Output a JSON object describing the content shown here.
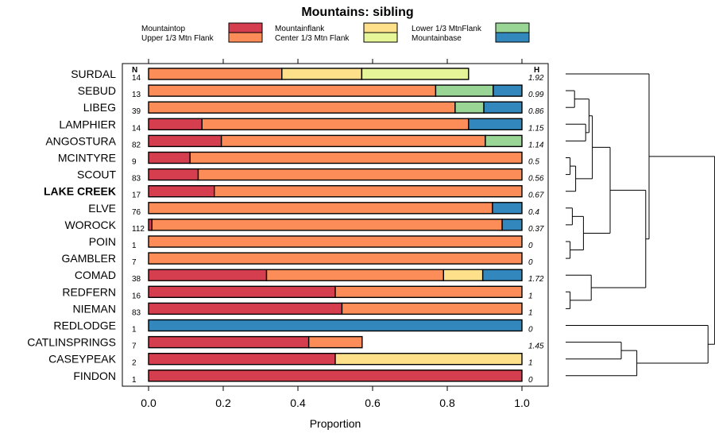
{
  "chart_data": {
    "type": "bar",
    "stacked": true,
    "orientation": "horizontal",
    "title": "Mountains: sibling",
    "xlabel": "Proportion",
    "xlim": [
      0,
      1
    ],
    "xticks": [
      "0.0",
      "0.2",
      "0.4",
      "0.6",
      "0.8",
      "1.0"
    ],
    "n_header": "N",
    "h_header": "H",
    "series": [
      {
        "name": "Mountaintop",
        "color": "#d53e4f"
      },
      {
        "name": "Upper 1/3 Mtn Flank",
        "color": "#fc8d59"
      },
      {
        "name": "Mountainflank",
        "color": "#fee08b"
      },
      {
        "name": "Center 1/3 Mtn Flank",
        "color": "#e6f598"
      },
      {
        "name": "Lower 1/3 MtnFlank",
        "color": "#99d594"
      },
      {
        "name": "Mountainbase",
        "color": "#3288bd"
      }
    ],
    "rows": [
      {
        "label": "SURDAL",
        "bold": false,
        "n": "14",
        "h": "1.92",
        "values": [
          0,
          0.357,
          0.214,
          0.286,
          0,
          0
        ]
      },
      {
        "label": "SEBUD",
        "bold": false,
        "n": "13",
        "h": "0.99",
        "values": [
          0,
          0.769,
          0,
          0,
          0.154,
          0.077
        ]
      },
      {
        "label": "LIBEG",
        "bold": false,
        "n": "39",
        "h": "0.86",
        "values": [
          0,
          0.821,
          0,
          0,
          0.077,
          0.102
        ]
      },
      {
        "label": "LAMPHIER",
        "bold": false,
        "n": "14",
        "h": "1.15",
        "values": [
          0.143,
          0.714,
          0,
          0,
          0,
          0.143
        ]
      },
      {
        "label": "ANGOSTURA",
        "bold": false,
        "n": "82",
        "h": "1.14",
        "values": [
          0.195,
          0.707,
          0,
          0,
          0.098,
          0
        ]
      },
      {
        "label": "MCINTYRE",
        "bold": false,
        "n": "9",
        "h": "0.5",
        "values": [
          0.111,
          0.889,
          0,
          0,
          0,
          0
        ]
      },
      {
        "label": "SCOUT",
        "bold": false,
        "n": "83",
        "h": "0.56",
        "values": [
          0.133,
          0.867,
          0,
          0,
          0,
          0
        ]
      },
      {
        "label": "LAKE CREEK",
        "bold": true,
        "n": "17",
        "h": "0.67",
        "values": [
          0.176,
          0.824,
          0,
          0,
          0,
          0
        ]
      },
      {
        "label": "ELVE",
        "bold": false,
        "n": "76",
        "h": "0.4",
        "values": [
          0,
          0.921,
          0,
          0,
          0,
          0.079
        ]
      },
      {
        "label": "WOROCK",
        "bold": false,
        "n": "112",
        "h": "0.37",
        "values": [
          0.009,
          0.938,
          0,
          0,
          0,
          0.053
        ]
      },
      {
        "label": "POIN",
        "bold": false,
        "n": "1",
        "h": "0",
        "values": [
          0,
          1,
          0,
          0,
          0,
          0
        ]
      },
      {
        "label": "GAMBLER",
        "bold": false,
        "n": "7",
        "h": "0",
        "values": [
          0,
          1,
          0,
          0,
          0,
          0
        ]
      },
      {
        "label": "COMAD",
        "bold": false,
        "n": "38",
        "h": "1.72",
        "values": [
          0.316,
          0.474,
          0.105,
          0,
          0,
          0.105
        ]
      },
      {
        "label": "REDFERN",
        "bold": false,
        "n": "16",
        "h": "1",
        "values": [
          0.5,
          0.5,
          0,
          0,
          0,
          0
        ]
      },
      {
        "label": "NIEMAN",
        "bold": false,
        "n": "83",
        "h": "1",
        "values": [
          0.518,
          0.482,
          0,
          0,
          0,
          0
        ]
      },
      {
        "label": "REDLODGE",
        "bold": false,
        "n": "1",
        "h": "0",
        "values": [
          0,
          0,
          0,
          0,
          0,
          1
        ]
      },
      {
        "label": "CATLINSPRINGS",
        "bold": false,
        "n": "7",
        "h": "1.45",
        "values": [
          0.429,
          0.143,
          0,
          0,
          0,
          0
        ]
      },
      {
        "label": "CASEYPEAK",
        "bold": false,
        "n": "2",
        "h": "1",
        "values": [
          0.5,
          0,
          0.5,
          0,
          0,
          0
        ]
      },
      {
        "label": "FINDON",
        "bold": false,
        "n": "1",
        "h": "0",
        "values": [
          1,
          0,
          0,
          0,
          0,
          0
        ]
      }
    ],
    "dendrogram": {
      "description": "hierarchical clustering of rows (leaf order top to bottom)",
      "merges": [
        {
          "a": 1,
          "b": 2,
          "height": 0.08
        },
        {
          "a": 5,
          "b": 6,
          "height": 0.04
        },
        {
          "a": 8,
          "b": 9,
          "height": 0.06
        },
        {
          "a": 10,
          "b": 11,
          "height": 0.04
        },
        {
          "a": 13,
          "b": 14,
          "height": 0.04
        },
        {
          "a": 16,
          "b": 17,
          "height": 0.5
        },
        {
          "a": "m1",
          "b": 7,
          "height": 0.09
        },
        {
          "a": 3,
          "b": 4,
          "height": 0.18
        },
        {
          "a": "m0",
          "b": "m7",
          "height": 0.21
        },
        {
          "a": "m6",
          "b": "m8",
          "height": 0.24
        },
        {
          "a": "m2",
          "b": "m3",
          "height": 0.16
        },
        {
          "a": "m9",
          "b": "m10",
          "height": 0.4
        },
        {
          "a": 12,
          "b": "m4",
          "height": 0.23
        },
        {
          "a": "m11",
          "b": "m12",
          "height": 0.72
        },
        {
          "a": 0,
          "b": "m13",
          "height": 0.75
        },
        {
          "a": "m5",
          "b": 18,
          "height": 0.64
        },
        {
          "a": 15,
          "b": "m15",
          "height": 1.28
        },
        {
          "a": "m14",
          "b": "m16",
          "height": 1.34
        }
      ]
    }
  }
}
